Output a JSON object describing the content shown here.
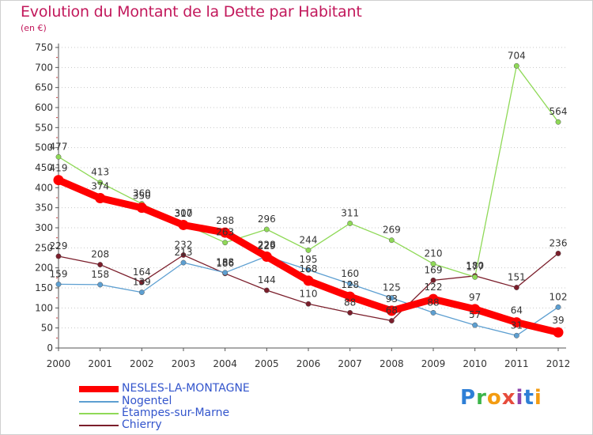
{
  "title": "Evolution du Montant de la Dette par Habitant",
  "unit": "(en €)",
  "brand": {
    "name": "Proxiti",
    "colors": [
      "#2e7fd6",
      "#3cb54a",
      "#f39c12",
      "#e74c3c",
      "#8e44ad",
      "#2e7fd6",
      "#f39c12"
    ]
  },
  "chart_data": {
    "type": "line",
    "x": [
      2000,
      2001,
      2002,
      2003,
      2004,
      2005,
      2006,
      2007,
      2008,
      2009,
      2010,
      2011,
      2012
    ],
    "ylim": [
      0,
      750
    ],
    "yticks": [
      0,
      50,
      100,
      150,
      200,
      250,
      300,
      350,
      400,
      450,
      500,
      550,
      600,
      650,
      700,
      750
    ],
    "grid": "horizontal dotted",
    "legend_position": "bottom-left",
    "series": [
      {
        "name": "NESLES-LA-MONTAGNE",
        "color": "#ff0000",
        "values": [
          419,
          374,
          350,
          307,
          288,
          228,
          168,
          128,
          93,
          122,
          97,
          64,
          39
        ]
      },
      {
        "name": "Nogentel",
        "color": "#5d9fd1",
        "values": [
          159,
          158,
          139,
          213,
          188,
          229,
          195,
          160,
          125,
          88,
          57,
          31,
          102
        ]
      },
      {
        "name": "Étampes-sur-Marne",
        "color": "#8fd957",
        "values": [
          477,
          413,
          360,
          310,
          263,
          296,
          244,
          311,
          269,
          210,
          177,
          704,
          564
        ]
      },
      {
        "name": "Chierry",
        "color": "#7b1e2b",
        "values": [
          229,
          208,
          164,
          232,
          186,
          144,
          110,
          88,
          68,
          169,
          180,
          151,
          236
        ]
      }
    ]
  }
}
